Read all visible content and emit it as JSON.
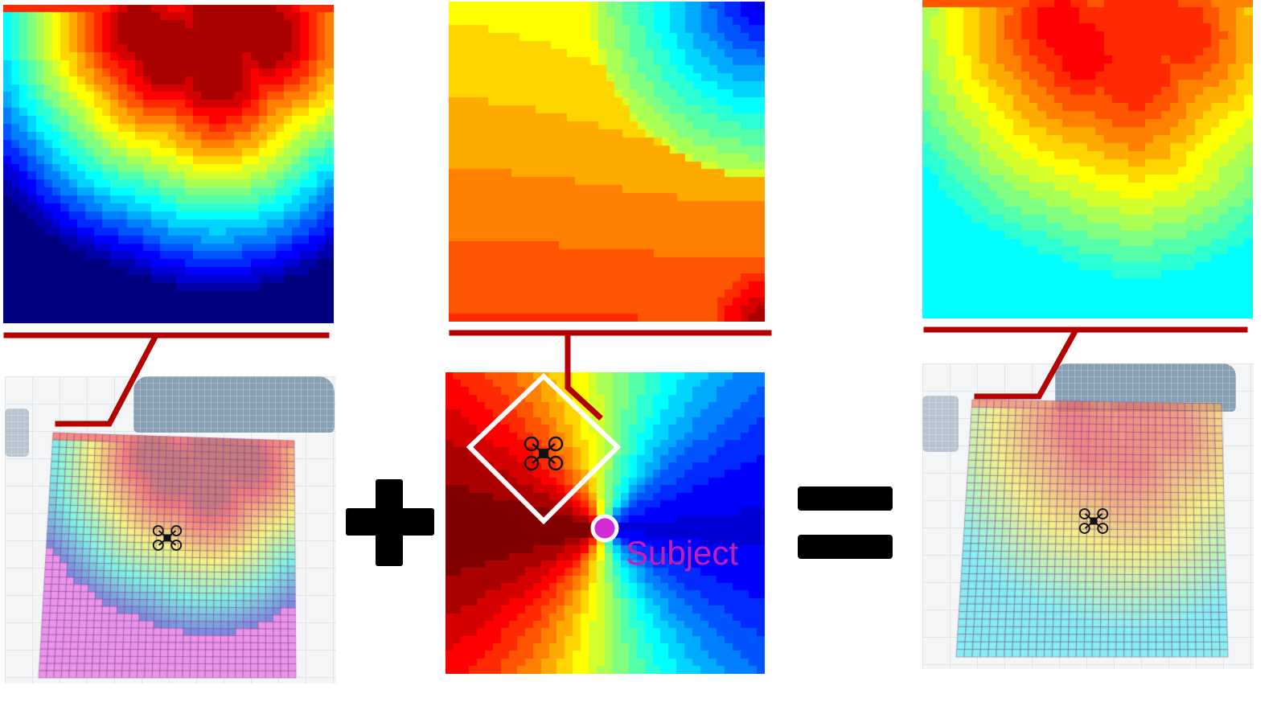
{
  "labels": {
    "subject": "Subject"
  },
  "operators": {
    "plus": "+",
    "equals": "="
  },
  "panels": [
    {
      "id": "obstacle-cost-map",
      "colormap": "jet",
      "pattern": "obstacle"
    },
    {
      "id": "viewpoint-cost-map",
      "colormap": "jet",
      "pattern": "viewpoint"
    },
    {
      "id": "combined-cost-map",
      "colormap": "jet",
      "pattern": "combined"
    }
  ],
  "colors": {
    "connector": "#b50000",
    "subject_marker": "#d12ad6",
    "drone_frame": "#ffffff",
    "operator": "#000000",
    "subject_text": "#c41fb5"
  },
  "icons": [
    "drone-icon",
    "subject-marker-icon",
    "plus-icon",
    "equals-icon"
  ]
}
